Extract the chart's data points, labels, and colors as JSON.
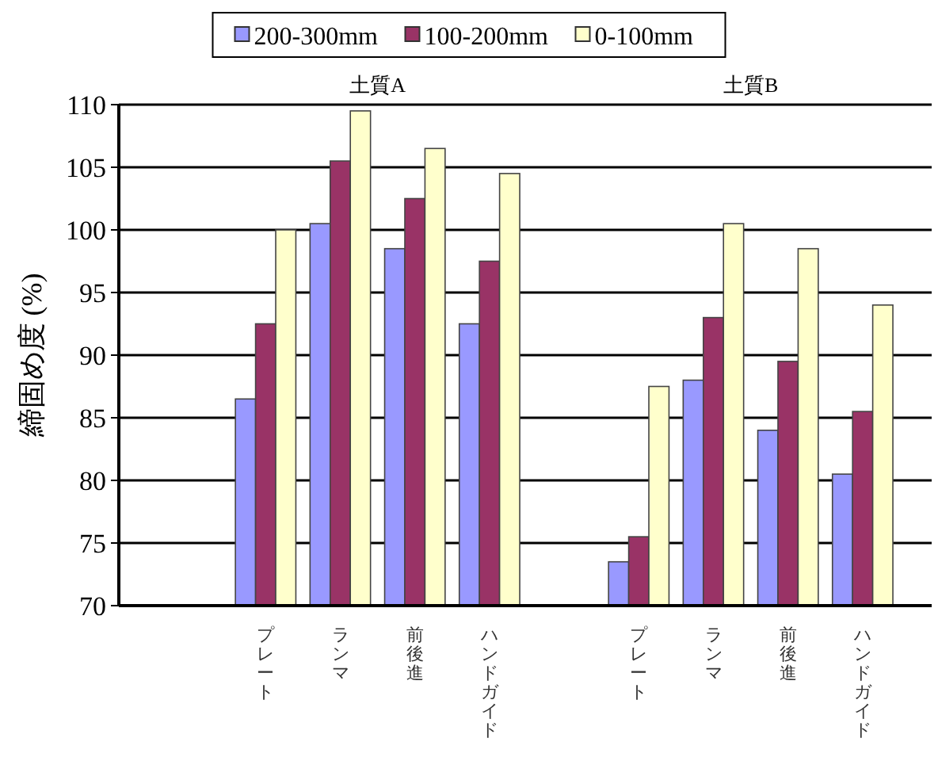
{
  "chart_data": {
    "type": "bar",
    "ylabel": "締固め度 (%)",
    "categories": [
      null,
      "プレート",
      "ランマ",
      "前後進",
      "ハンドガイド",
      null,
      "プレート",
      "ランマ",
      "前後進",
      "ハンドガイド"
    ],
    "series": [
      {
        "name": "200-300mm",
        "color": "#9999ff",
        "values": [
          null,
          86.5,
          100.5,
          98.5,
          92.5,
          null,
          73.5,
          88,
          84,
          80.5
        ]
      },
      {
        "name": "100-200mm",
        "color": "#993366",
        "values": [
          null,
          92.5,
          105.5,
          102.5,
          97.5,
          null,
          75.5,
          93,
          89.5,
          85.5
        ]
      },
      {
        "name": "0-100mm",
        "color": "#ffffcc",
        "values": [
          null,
          100,
          109.5,
          106.5,
          104.5,
          null,
          87.5,
          100.5,
          98.5,
          94
        ]
      }
    ],
    "annotations": [
      "土質A",
      "土質B"
    ],
    "ylim": [
      70,
      110
    ],
    "yticks": [
      70,
      75,
      80,
      85,
      90,
      95,
      100,
      105,
      110
    ],
    "grid": "y",
    "legend": "top"
  }
}
